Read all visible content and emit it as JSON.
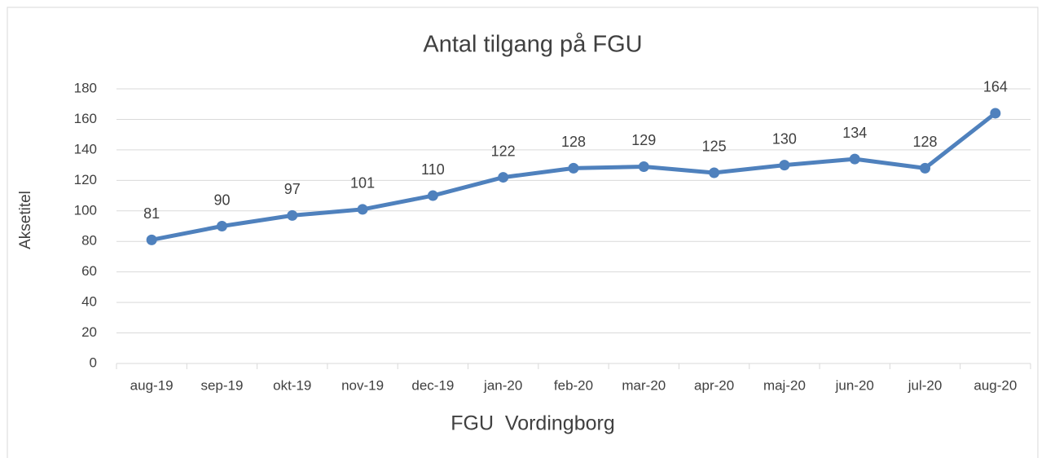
{
  "chart_data": {
    "type": "line",
    "title": "Antal tilgang på FGU",
    "x_label": "FGU  Vordingborg",
    "y_label": "Aksetitel",
    "categories": [
      "aug-19",
      "sep-19",
      "okt-19",
      "nov-19",
      "dec-19",
      "jan-20",
      "feb-20",
      "mar-20",
      "apr-20",
      "maj-20",
      "jun-20",
      "jul-20",
      "aug-20"
    ],
    "series": [
      {
        "name": "FGU  Vordingborg",
        "color": "#4f81bd",
        "values": [
          81,
          90,
          97,
          101,
          110,
          122,
          128,
          129,
          125,
          130,
          134,
          128,
          164
        ]
      }
    ],
    "ylim": [
      0,
      180
    ],
    "yticks": [
      0,
      20,
      40,
      60,
      80,
      100,
      120,
      140,
      160,
      180
    ],
    "grid": true,
    "data_labels": true
  }
}
